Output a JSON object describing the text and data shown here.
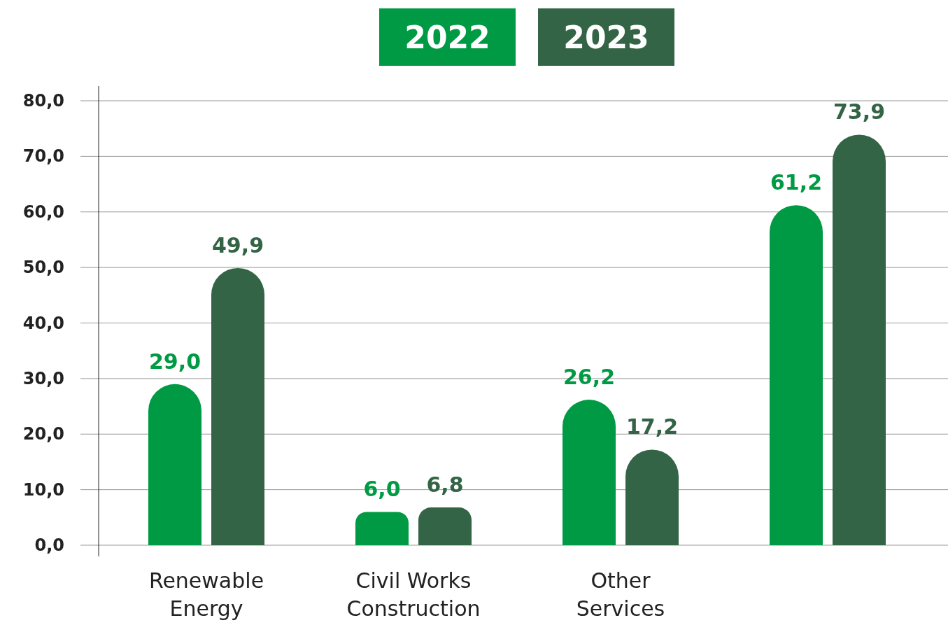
{
  "chart_data": {
    "type": "bar",
    "categories": [
      "Renewable Energy",
      "Civil Works Construction",
      "Other Services",
      null
    ],
    "series": [
      {
        "name": "2022",
        "color": "#009a44",
        "values": [
          29.0,
          6.0,
          26.2,
          61.2
        ],
        "value_labels": [
          "29,0",
          "6,0",
          "26,2",
          "61,2"
        ]
      },
      {
        "name": "2023",
        "color": "#336445",
        "values": [
          49.9,
          6.8,
          17.2,
          73.9
        ],
        "value_labels": [
          "49,9",
          "6,8",
          "17,2",
          "73,9"
        ]
      }
    ],
    "ylim": [
      0,
      80
    ],
    "yticks": [
      {
        "value": 0,
        "label": "0,0"
      },
      {
        "value": 10,
        "label": "10,0"
      },
      {
        "value": 20,
        "label": "20,0"
      },
      {
        "value": 30,
        "label": "30,0"
      },
      {
        "value": 40,
        "label": "40,0"
      },
      {
        "value": 50,
        "label": "50,0"
      },
      {
        "value": 60,
        "label": "60,0"
      },
      {
        "value": 70,
        "label": "70,0"
      },
      {
        "value": 80,
        "label": "80,0"
      }
    ],
    "grid": "y",
    "legend": "top"
  }
}
